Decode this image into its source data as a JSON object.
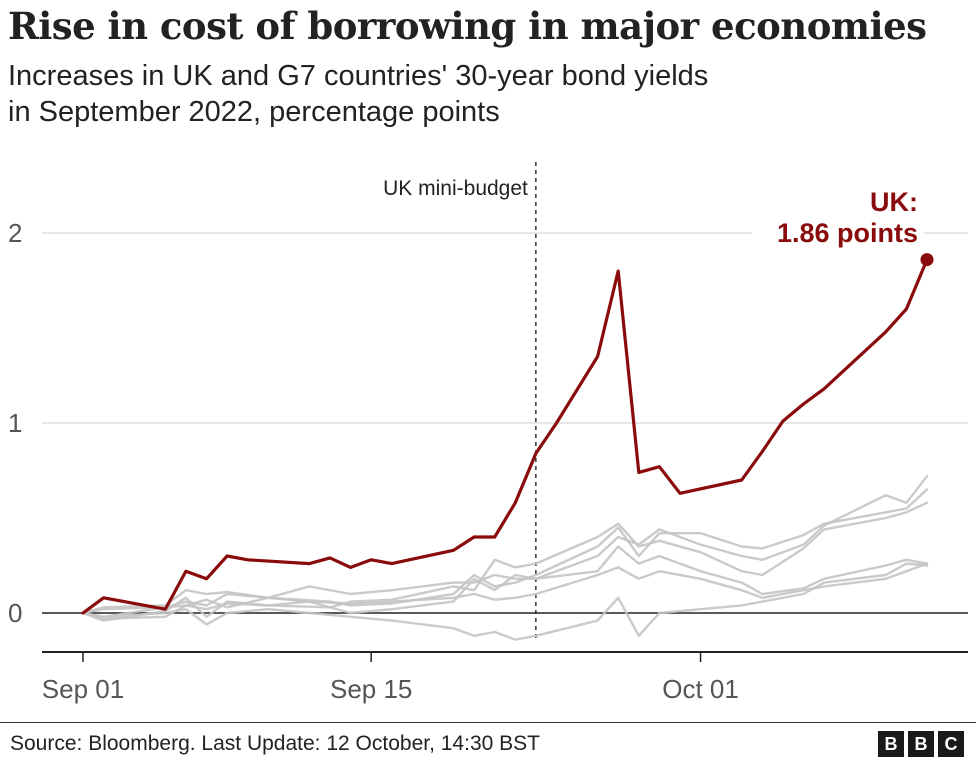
{
  "header": {
    "title": "Rise in cost of borrowing in major economies",
    "subtitle_line1": "Increases in UK and G7 countries' 30-year bond yields",
    "subtitle_line2": "in September 2022, percentage points"
  },
  "footer": {
    "source": "Source: Bloomberg. Last Update: 12 October, 14:30 BST",
    "logo_letters": [
      "B",
      "B",
      "C"
    ]
  },
  "chart_data": {
    "type": "line",
    "title": "Rise in cost of borrowing in major economies",
    "xlabel": "",
    "ylabel": "",
    "x_ticks": [
      {
        "day": 1,
        "label": "Sep 01"
      },
      {
        "day": 15,
        "label": "Sep 15"
      },
      {
        "day": 31,
        "label": "Oct 01"
      }
    ],
    "y_ticks": [
      {
        "value": 0,
        "label": "0"
      },
      {
        "value": 1,
        "label": "1"
      },
      {
        "value": 2,
        "label": "2"
      }
    ],
    "xlim": [
      1,
      42
    ],
    "ylim": [
      -0.2,
      2.3
    ],
    "grid": true,
    "annotation_event": {
      "day": 23,
      "label": "UK mini-budget"
    },
    "highlight_label_line1": "UK:",
    "highlight_label_line2": "1.86 points",
    "colors": {
      "uk": "#8a0b0b",
      "g7": "#c4c4c4",
      "grid": "#cccccc",
      "axis": "#222222"
    },
    "series": [
      {
        "name": "UK",
        "highlight": true,
        "points": [
          [
            1,
            0
          ],
          [
            2,
            0.08
          ],
          [
            5,
            0.02
          ],
          [
            6,
            0.22
          ],
          [
            7,
            0.18
          ],
          [
            8,
            0.3
          ],
          [
            9,
            0.28
          ],
          [
            12,
            0.26
          ],
          [
            13,
            0.29
          ],
          [
            14,
            0.24
          ],
          [
            15,
            0.28
          ],
          [
            16,
            0.26
          ],
          [
            19,
            0.33
          ],
          [
            20,
            0.4
          ],
          [
            21,
            0.4
          ],
          [
            22,
            0.58
          ],
          [
            23,
            0.84
          ],
          [
            24,
            1.0
          ],
          [
            26,
            1.35
          ],
          [
            27,
            1.8
          ],
          [
            28,
            0.74
          ],
          [
            29,
            0.77
          ],
          [
            30,
            0.63
          ],
          [
            33,
            0.7
          ],
          [
            34,
            0.85
          ],
          [
            35,
            1.01
          ],
          [
            36,
            1.1
          ],
          [
            37,
            1.18
          ],
          [
            40,
            1.48
          ],
          [
            41,
            1.6
          ],
          [
            42,
            1.86
          ]
        ]
      },
      {
        "points": [
          [
            1,
            0
          ],
          [
            2,
            0.02
          ],
          [
            5,
            0.03
          ],
          [
            6,
            0.06
          ],
          [
            7,
            0.04
          ],
          [
            8,
            0.1
          ],
          [
            10,
            0.08
          ],
          [
            13,
            0.06
          ],
          [
            14,
            0.04
          ],
          [
            16,
            0.05
          ],
          [
            19,
            0.1
          ],
          [
            20,
            0.2
          ],
          [
            21,
            0.14
          ],
          [
            22,
            0.16
          ],
          [
            23,
            0.2
          ],
          [
            26,
            0.35
          ],
          [
            27,
            0.45
          ],
          [
            28,
            0.3
          ],
          [
            29,
            0.42
          ],
          [
            31,
            0.42
          ],
          [
            33,
            0.35
          ],
          [
            34,
            0.34
          ],
          [
            36,
            0.41
          ],
          [
            37,
            0.47
          ],
          [
            40,
            0.53
          ],
          [
            41,
            0.55
          ],
          [
            42,
            0.65
          ]
        ]
      },
      {
        "points": [
          [
            1,
            0
          ],
          [
            2,
            -0.04
          ],
          [
            5,
            0.01
          ],
          [
            6,
            0.08
          ],
          [
            7,
            -0.02
          ],
          [
            8,
            0.06
          ],
          [
            10,
            0.04
          ],
          [
            13,
            0.03
          ],
          [
            14,
            0.06
          ],
          [
            16,
            0.07
          ],
          [
            19,
            0.14
          ],
          [
            20,
            0.12
          ],
          [
            21,
            0.28
          ],
          [
            22,
            0.24
          ],
          [
            23,
            0.26
          ],
          [
            26,
            0.4
          ],
          [
            27,
            0.47
          ],
          [
            28,
            0.35
          ],
          [
            29,
            0.38
          ],
          [
            31,
            0.32
          ],
          [
            33,
            0.22
          ],
          [
            34,
            0.2
          ],
          [
            36,
            0.34
          ],
          [
            37,
            0.44
          ],
          [
            40,
            0.5
          ],
          [
            41,
            0.53
          ],
          [
            42,
            0.58
          ]
        ]
      },
      {
        "points": [
          [
            1,
            0
          ],
          [
            2,
            -0.02
          ],
          [
            5,
            0.03
          ],
          [
            6,
            0.04
          ],
          [
            7,
            0.07
          ],
          [
            8,
            0.03
          ],
          [
            10,
            0.08
          ],
          [
            12,
            0.06
          ],
          [
            14,
            0.0
          ],
          [
            16,
            0.02
          ],
          [
            19,
            0.06
          ],
          [
            20,
            0.18
          ],
          [
            21,
            0.12
          ],
          [
            22,
            0.2
          ],
          [
            23,
            0.18
          ],
          [
            26,
            0.22
          ],
          [
            27,
            0.35
          ],
          [
            28,
            0.26
          ],
          [
            29,
            0.3
          ],
          [
            31,
            0.22
          ],
          [
            33,
            0.16
          ],
          [
            34,
            0.1
          ],
          [
            36,
            0.13
          ],
          [
            37,
            0.18
          ],
          [
            40,
            0.25
          ],
          [
            41,
            0.28
          ],
          [
            42,
            0.26
          ]
        ]
      },
      {
        "points": [
          [
            1,
            0
          ],
          [
            2,
            0.03
          ],
          [
            5,
            0.04
          ],
          [
            6,
            0.12
          ],
          [
            7,
            0.1
          ],
          [
            8,
            0.11
          ],
          [
            10,
            0.08
          ],
          [
            12,
            0.14
          ],
          [
            14,
            0.1
          ],
          [
            16,
            0.12
          ],
          [
            19,
            0.16
          ],
          [
            20,
            0.16
          ],
          [
            21,
            0.2
          ],
          [
            22,
            0.18
          ],
          [
            23,
            0.18
          ],
          [
            26,
            0.3
          ],
          [
            27,
            0.4
          ],
          [
            28,
            0.36
          ],
          [
            29,
            0.44
          ],
          [
            31,
            0.36
          ],
          [
            33,
            0.3
          ],
          [
            34,
            0.28
          ],
          [
            36,
            0.36
          ],
          [
            37,
            0.46
          ],
          [
            40,
            0.62
          ],
          [
            41,
            0.58
          ],
          [
            42,
            0.72
          ]
        ]
      },
      {
        "points": [
          [
            1,
            0
          ],
          [
            2,
            -0.02
          ],
          [
            5,
            0.0
          ],
          [
            6,
            0.02
          ],
          [
            7,
            -0.06
          ],
          [
            8,
            0.0
          ],
          [
            10,
            0.02
          ],
          [
            12,
            0.0
          ],
          [
            14,
            -0.02
          ],
          [
            16,
            -0.04
          ],
          [
            19,
            -0.08
          ],
          [
            20,
            -0.12
          ],
          [
            21,
            -0.1
          ],
          [
            22,
            -0.14
          ],
          [
            23,
            -0.12
          ],
          [
            26,
            -0.04
          ],
          [
            27,
            0.08
          ],
          [
            28,
            -0.12
          ],
          [
            29,
            0.0
          ],
          [
            31,
            0.02
          ],
          [
            33,
            0.04
          ],
          [
            34,
            0.06
          ],
          [
            36,
            0.1
          ],
          [
            37,
            0.16
          ],
          [
            40,
            0.2
          ],
          [
            41,
            0.26
          ],
          [
            42,
            0.25
          ]
        ]
      },
      {
        "points": [
          [
            1,
            0
          ],
          [
            2,
            -0.03
          ],
          [
            5,
            -0.02
          ],
          [
            6,
            0.04
          ],
          [
            7,
            0.02
          ],
          [
            8,
            0.05
          ],
          [
            10,
            0.04
          ],
          [
            12,
            0.06
          ],
          [
            14,
            0.05
          ],
          [
            16,
            0.06
          ],
          [
            19,
            0.08
          ],
          [
            20,
            0.1
          ],
          [
            21,
            0.07
          ],
          [
            22,
            0.08
          ],
          [
            23,
            0.1
          ],
          [
            26,
            0.2
          ],
          [
            27,
            0.24
          ],
          [
            28,
            0.18
          ],
          [
            29,
            0.22
          ],
          [
            31,
            0.18
          ],
          [
            33,
            0.12
          ],
          [
            34,
            0.08
          ],
          [
            36,
            0.12
          ],
          [
            37,
            0.14
          ],
          [
            40,
            0.18
          ],
          [
            41,
            0.22
          ],
          [
            42,
            0.26
          ]
        ]
      }
    ]
  }
}
